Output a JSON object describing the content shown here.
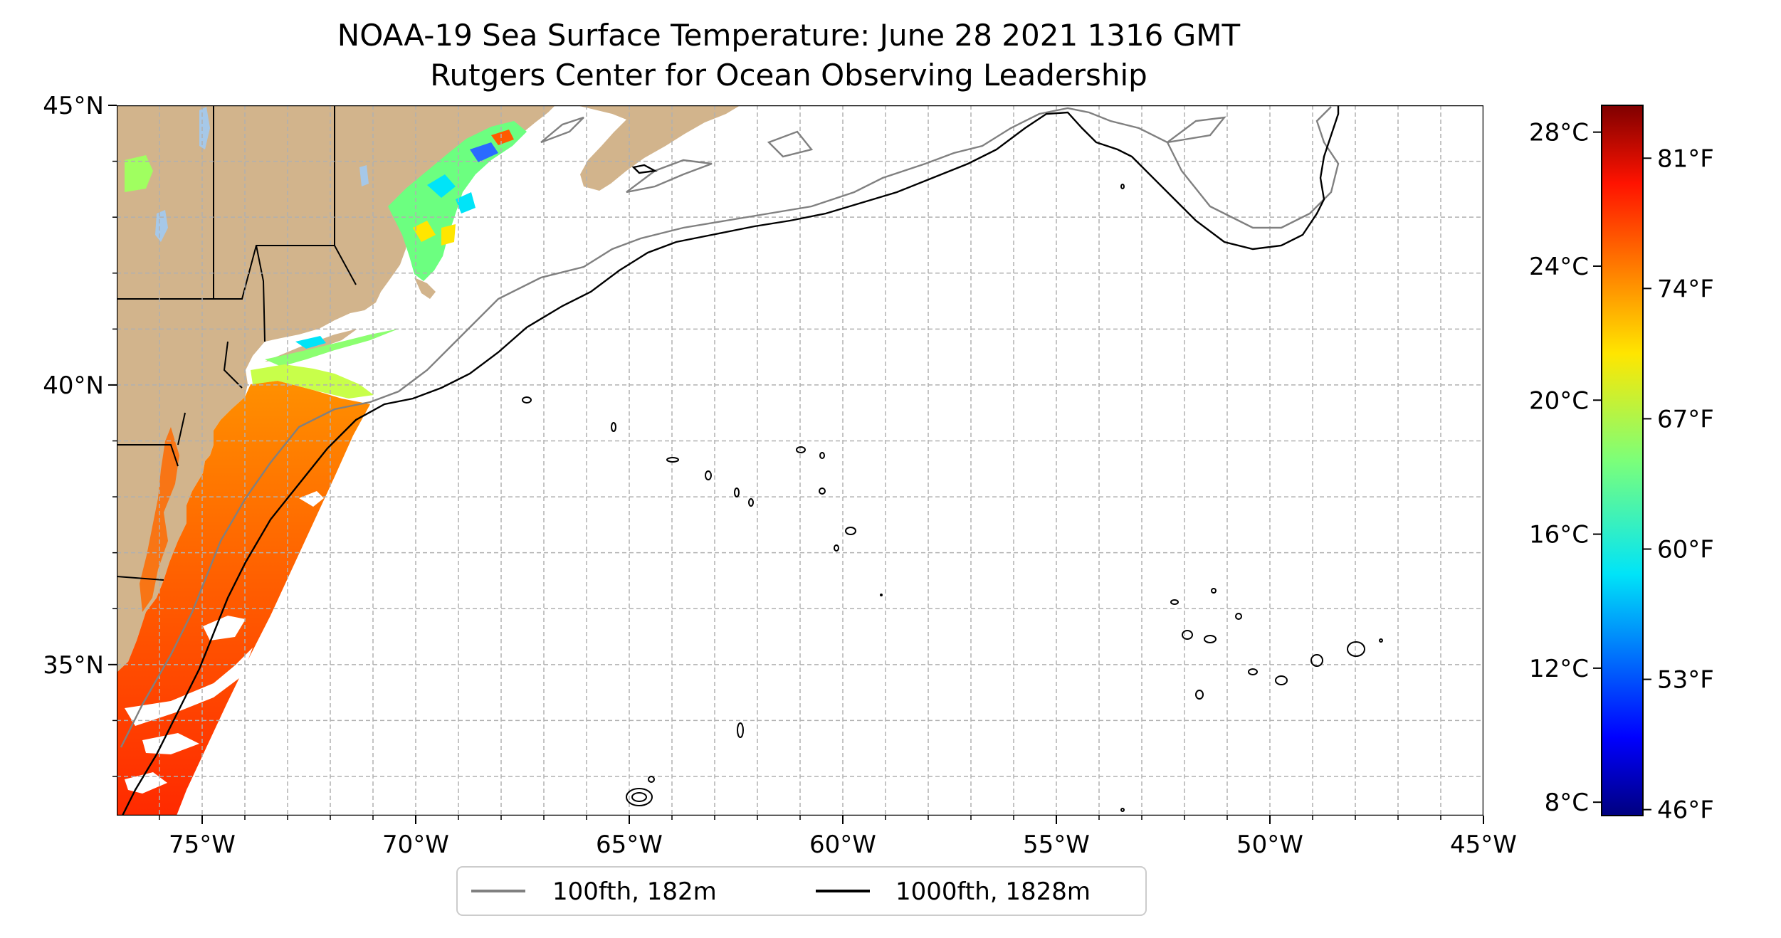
{
  "title_line1": "NOAA-19 Sea Surface Temperature: June 28 2021 1316 GMT",
  "title_line2": "Rutgers Center for Ocean Observing Leadership",
  "chart_data": {
    "type": "heatmap",
    "map_extent": {
      "lon": [
        -77,
        -45
      ],
      "lat": [
        32.3,
        45
      ]
    },
    "grid": true,
    "x_ticks": [
      {
        "value": -75,
        "label": "75°W"
      },
      {
        "value": -70,
        "label": "70°W"
      },
      {
        "value": -65,
        "label": "65°W"
      },
      {
        "value": -60,
        "label": "60°W"
      },
      {
        "value": -55,
        "label": "55°W"
      },
      {
        "value": -50,
        "label": "50°W"
      },
      {
        "value": -45,
        "label": "45°W"
      }
    ],
    "y_ticks": [
      {
        "value": 45,
        "label": "45°N"
      },
      {
        "value": 40,
        "label": "40°N"
      },
      {
        "value": 35,
        "label": "35°N"
      }
    ],
    "colorbar": {
      "colormap": "jet",
      "range_celsius": [
        7.6,
        28.8
      ],
      "celsius_ticks": [
        {
          "value": 28,
          "label": "28°C"
        },
        {
          "value": 24,
          "label": "24°C"
        },
        {
          "value": 20,
          "label": "20°C"
        },
        {
          "value": 16,
          "label": "16°C"
        },
        {
          "value": 12,
          "label": "12°C"
        },
        {
          "value": 8,
          "label": "8°C"
        }
      ],
      "fahrenheit_ticks": [
        {
          "value": 81,
          "label": "81°F"
        },
        {
          "value": 74,
          "label": "74°F"
        },
        {
          "value": 67,
          "label": "67°F"
        },
        {
          "value": 60,
          "label": "60°F"
        },
        {
          "value": 53,
          "label": "53°F"
        },
        {
          "value": 46,
          "label": "46°F"
        }
      ]
    },
    "legend": {
      "placement": "bottom-center",
      "entries": [
        {
          "label": "100fth, 182m",
          "color": "#808080"
        },
        {
          "label": "1000fth, 1828m",
          "color": "#000000"
        }
      ]
    }
  },
  "colors": {
    "land": "#d2b48c",
    "lakes": "#a6c8e8",
    "grid": "#b0b0b0",
    "isobath_100": "#808080",
    "isobath_1000": "#000000"
  }
}
